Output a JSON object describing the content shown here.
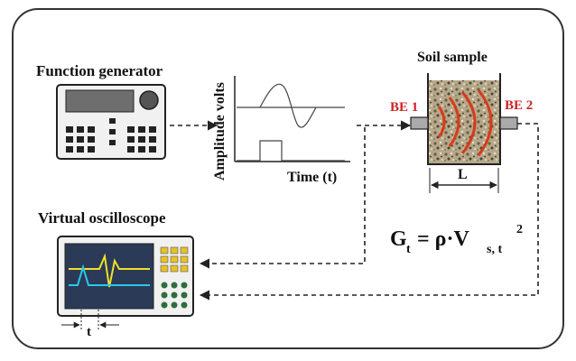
{
  "labels": {
    "function_generator": "Function generator",
    "soil_sample": "Soil sample",
    "be1": "BE 1",
    "be2": "BE 2",
    "amplitude_axis": "Amplitude volts",
    "time_axis": "Time (t)",
    "length": "L",
    "virtual_oscilloscope": "Virtual oscilloscope",
    "travel_time": "t"
  },
  "equation": {
    "lhs": "G",
    "lhs_sub": "t",
    "equals_rho": "= ρ·V",
    "rhs_sub": "s, t",
    "power": "2"
  },
  "colors": {
    "frame": "#333333",
    "line": "#222222",
    "be_label": "#cc2222",
    "wave_arc": "#d83a1a",
    "scope_bg": "#2a3a57",
    "scope_yellow": "#f2e02c",
    "scope_cyan": "#2cc8e8",
    "button_green": "#2f6d3a"
  }
}
